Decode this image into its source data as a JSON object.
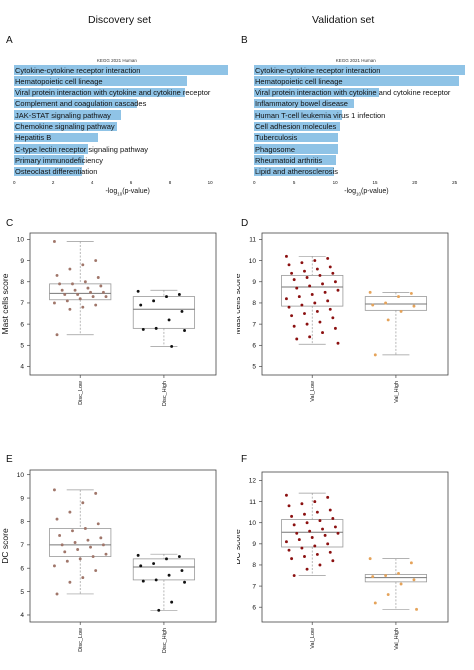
{
  "titles": {
    "discovery": "Discovery set",
    "validation": "Validation set"
  },
  "panels": {
    "A": "A",
    "B": "B",
    "C": "C",
    "D": "D",
    "E": "E",
    "F": "F"
  },
  "colors": {
    "bar": "#8fc3e6",
    "low_C": "#a0766a",
    "high": "#111111",
    "low_D": "#8b1010",
    "high_D": "#e5a35a",
    "box_fill": "#ffffff"
  },
  "chart_data": [
    {
      "id": "A",
      "type": "bar",
      "title": "KEGG 2021 Human",
      "xlabel_main": "-log",
      "xlabel_sub": "10",
      "xlabel_tail": "(p-value)",
      "categories": [
        "Cytokine-cytokine receptor interaction",
        "Hematopoietic cell lineage",
        "Viral protein interaction with cytokine and cytokine receptor",
        "Complement and coagulation cascades",
        "JAK-STAT signaling pathway",
        "Chemokine signaling pathway",
        "Hepatitis B",
        "C-type lectin receptor signaling pathway",
        "Primary immunodeficiency",
        "Osteoclast differentiation"
      ],
      "values": [
        11.0,
        8.9,
        8.8,
        6.3,
        5.5,
        5.3,
        4.3,
        3.8,
        3.6,
        3.5
      ],
      "xticks": [
        "0",
        "2",
        "4",
        "6",
        "8",
        "10"
      ],
      "xlim": [
        0,
        11.2
      ]
    },
    {
      "id": "B",
      "type": "bar",
      "title": "KEGG 2021 Human",
      "xlabel_main": "-log",
      "xlabel_sub": "10",
      "xlabel_tail": "(p-value)",
      "categories": [
        "Cytokine-cytokine receptor interaction",
        "Hematopoietic cell lineage",
        "Viral protein interaction with cytokine and cytokine receptor",
        "Inflammatory bowel disease",
        "Human T-cell leukemia virus 1 infection",
        "Cell adhesion molecules",
        "Tuberculosis",
        "Phagosome",
        "Rheumatoid arthritis",
        "Lipid and atherosclerosis"
      ],
      "values": [
        26.5,
        25.8,
        15.7,
        12.5,
        11.0,
        10.8,
        10.5,
        10.5,
        10.3,
        10.0
      ],
      "xticks": [
        "0",
        "5",
        "10",
        "15",
        "20",
        "25"
      ],
      "xlim": [
        0,
        27
      ]
    },
    {
      "id": "C",
      "type": "scatter",
      "ylabel": "Mast cells score",
      "categories": [
        "Disc_Low",
        "Disc_High"
      ],
      "ylim": [
        3.6,
        10.3
      ],
      "yticks": [
        "4",
        "5",
        "6",
        "7",
        "8",
        "9",
        "10"
      ],
      "boxes": [
        {
          "whisker_low": 5.5,
          "q1": 7.15,
          "median": 7.45,
          "q3": 7.9,
          "whisker_high": 9.9
        },
        {
          "whisker_low": 4.95,
          "q1": 5.8,
          "median": 6.7,
          "q3": 7.3,
          "whisker_high": 7.6
        }
      ],
      "points": [
        [
          9.9,
          9.0,
          8.8,
          8.6,
          8.3,
          8.2,
          8.0,
          7.9,
          7.9,
          7.8,
          7.7,
          7.6,
          7.6,
          7.5,
          7.5,
          7.4,
          7.4,
          7.3,
          7.3,
          7.2,
          7.1,
          7.0,
          6.9,
          6.8,
          6.7,
          5.5
        ],
        [
          7.55,
          7.4,
          7.3,
          7.1,
          6.9,
          6.6,
          6.2,
          5.8,
          5.75,
          5.7,
          4.95
        ]
      ]
    },
    {
      "id": "D",
      "type": "scatter",
      "ylabel": "Mast cells score",
      "categories": [
        "Val_Low",
        "Val_High"
      ],
      "ylim": [
        4.6,
        11.3
      ],
      "yticks": [
        "5",
        "6",
        "7",
        "8",
        "9",
        "10",
        "11"
      ],
      "boxes": [
        {
          "whisker_low": 6.05,
          "q1": 7.85,
          "median": 8.75,
          "q3": 9.3,
          "whisker_high": 10.2
        },
        {
          "whisker_low": 5.55,
          "q1": 7.65,
          "median": 7.95,
          "q3": 8.3,
          "whisker_high": 8.5
        }
      ],
      "points": [
        [
          10.2,
          10.1,
          10.0,
          9.9,
          9.8,
          9.7,
          9.6,
          9.5,
          9.4,
          9.4,
          9.3,
          9.2,
          9.1,
          9.0,
          8.9,
          8.8,
          8.7,
          8.6,
          8.5,
          8.4,
          8.3,
          8.2,
          8.1,
          8.0,
          7.9,
          7.8,
          7.7,
          7.6,
          7.5,
          7.4,
          7.3,
          7.1,
          7.0,
          6.9,
          6.8,
          6.6,
          6.4,
          6.3,
          6.1
        ],
        [
          8.5,
          8.45,
          8.3,
          8.0,
          7.9,
          7.85,
          7.6,
          7.2,
          5.55
        ]
      ]
    },
    {
      "id": "E",
      "type": "scatter",
      "ylabel": "DC score",
      "categories": [
        "Disc_Low",
        "Disc_High"
      ],
      "ylim": [
        3.7,
        10.2
      ],
      "yticks": [
        "4",
        "5",
        "6",
        "7",
        "8",
        "9",
        "10"
      ],
      "boxes": [
        {
          "whisker_low": 4.9,
          "q1": 6.5,
          "median": 7.0,
          "q3": 7.7,
          "whisker_high": 9.35
        },
        {
          "whisker_low": 4.2,
          "q1": 5.5,
          "median": 6.05,
          "q3": 6.4,
          "whisker_high": 6.6
        }
      ],
      "points": [
        [
          9.35,
          9.2,
          8.8,
          8.4,
          8.1,
          7.9,
          7.7,
          7.6,
          7.4,
          7.3,
          7.2,
          7.1,
          7.0,
          7.0,
          6.9,
          6.8,
          6.7,
          6.6,
          6.5,
          6.4,
          6.3,
          6.1,
          5.9,
          5.6,
          5.4,
          4.9
        ],
        [
          6.55,
          6.5,
          6.4,
          6.2,
          6.1,
          5.9,
          5.7,
          5.5,
          5.45,
          5.4,
          4.55,
          4.2
        ]
      ]
    },
    {
      "id": "F",
      "type": "scatter",
      "ylabel": "DC score",
      "categories": [
        "Val_Low",
        "Val_High"
      ],
      "ylim": [
        5.3,
        12.4
      ],
      "yticks": [
        "6",
        "7",
        "8",
        "9",
        "10",
        "11",
        "12"
      ],
      "boxes": [
        {
          "whisker_low": 7.5,
          "q1": 8.85,
          "median": 9.55,
          "q3": 10.15,
          "whisker_high": 11.4
        },
        {
          "whisker_low": 5.9,
          "q1": 7.2,
          "median": 7.4,
          "q3": 7.55,
          "whisker_high": 8.3
        }
      ],
      "points": [
        [
          11.3,
          11.2,
          11.0,
          10.9,
          10.8,
          10.6,
          10.5,
          10.4,
          10.3,
          10.2,
          10.1,
          10.0,
          9.9,
          9.8,
          9.7,
          9.6,
          9.5,
          9.5,
          9.4,
          9.3,
          9.2,
          9.1,
          9.0,
          8.9,
          8.8,
          8.7,
          8.6,
          8.5,
          8.4,
          8.3,
          8.2,
          8.0,
          7.8,
          7.5
        ],
        [
          8.3,
          8.1,
          7.6,
          7.5,
          7.45,
          7.3,
          7.1,
          6.6,
          6.2,
          5.9
        ]
      ]
    }
  ]
}
